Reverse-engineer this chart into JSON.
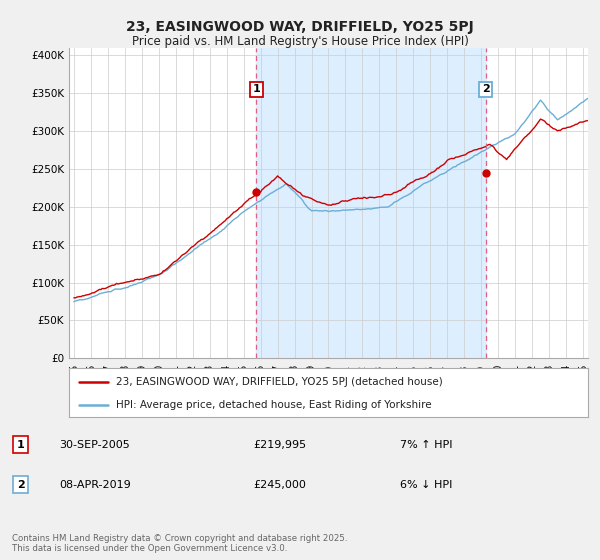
{
  "title_line1": "23, EASINGWOOD WAY, DRIFFIELD, YO25 5PJ",
  "title_line2": "Price paid vs. HM Land Registry's House Price Index (HPI)",
  "ylabel_ticks": [
    "£0",
    "£50K",
    "£100K",
    "£150K",
    "£200K",
    "£250K",
    "£300K",
    "£350K",
    "£400K"
  ],
  "ytick_values": [
    0,
    50000,
    100000,
    150000,
    200000,
    250000,
    300000,
    350000,
    400000
  ],
  "ylim": [
    0,
    410000
  ],
  "xlim_year_start": 1995,
  "xlim_year_end": 2025,
  "xtick_years": [
    1995,
    1996,
    1997,
    1998,
    1999,
    2000,
    2001,
    2002,
    2003,
    2004,
    2005,
    2006,
    2007,
    2008,
    2009,
    2010,
    2011,
    2012,
    2013,
    2014,
    2015,
    2016,
    2017,
    2018,
    2019,
    2020,
    2021,
    2022,
    2023,
    2024,
    2025
  ],
  "hpi_color": "#6baed6",
  "price_color": "#cc0000",
  "vline_color": "#e06080",
  "shade_color": "#ddeeff",
  "purchase1_year": 2005.75,
  "purchase1_price": 219995,
  "purchase1_label": "1",
  "purchase2_year": 2019.27,
  "purchase2_price": 245000,
  "purchase2_label": "2",
  "legend_line1": "23, EASINGWOOD WAY, DRIFFIELD, YO25 5PJ (detached house)",
  "legend_line2": "HPI: Average price, detached house, East Riding of Yorkshire",
  "annotation1_date": "30-SEP-2005",
  "annotation1_price": "£219,995",
  "annotation1_hpi": "7% ↑ HPI",
  "annotation2_date": "08-APR-2019",
  "annotation2_price": "£245,000",
  "annotation2_hpi": "6% ↓ HPI",
  "footer": "Contains HM Land Registry data © Crown copyright and database right 2025.\nThis data is licensed under the Open Government Licence v3.0.",
  "bg_color": "#f0f0f0",
  "plot_bg_color": "#ffffff"
}
